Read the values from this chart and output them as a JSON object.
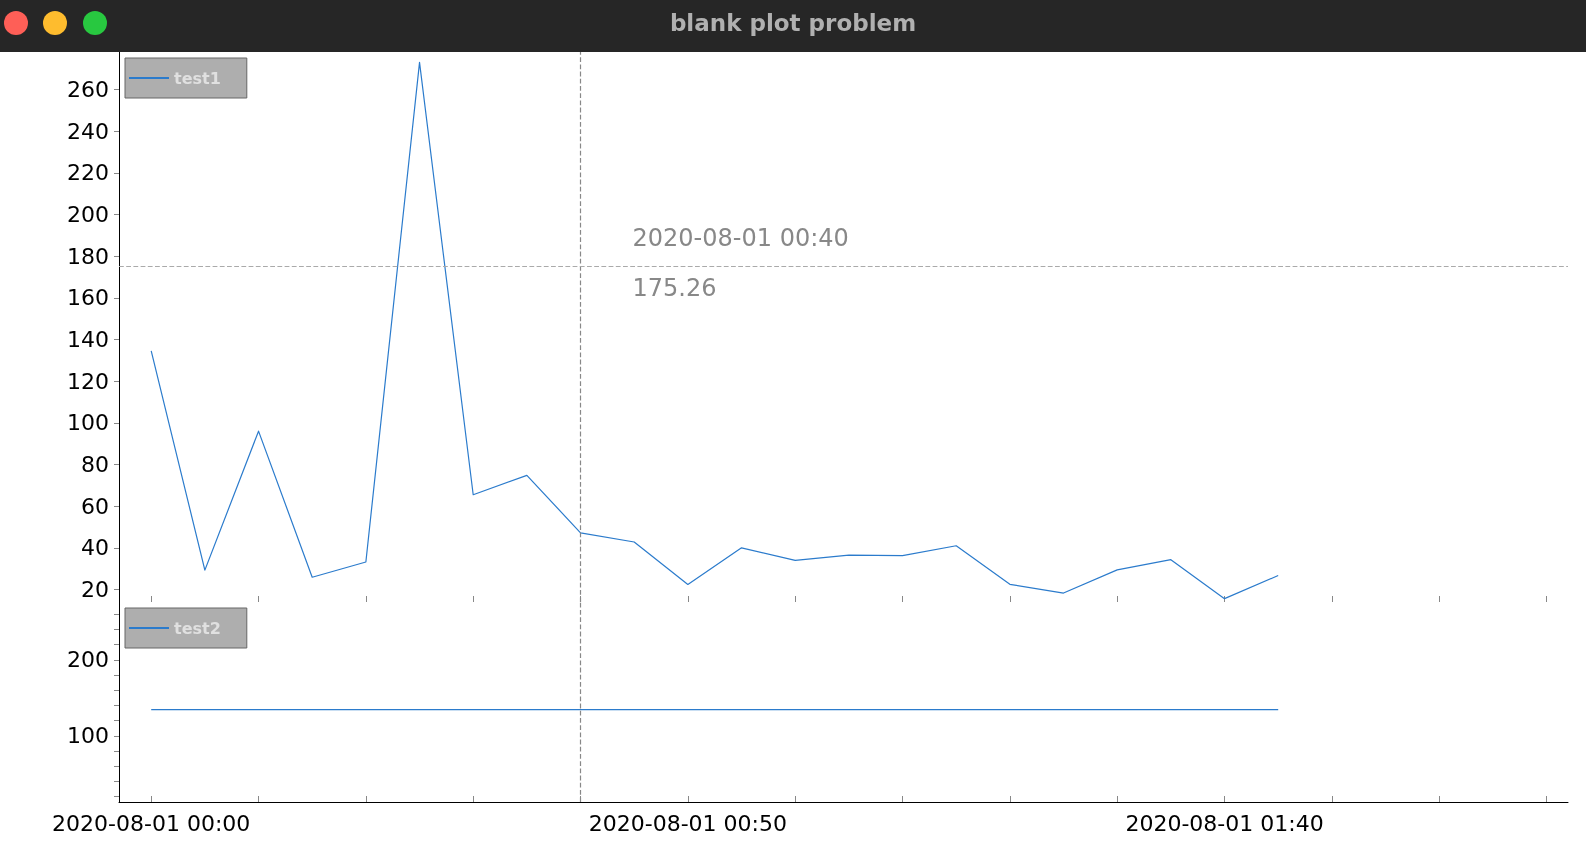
{
  "chart_data": [
    {
      "type": "line",
      "title": "blank plot problem",
      "x": [
        "2020-08-01T00:00",
        "2020-08-01T00:05",
        "2020-08-01T00:10",
        "2020-08-01T00:15",
        "2020-08-01T00:20",
        "2020-08-01T00:25",
        "2020-08-01T00:30",
        "2020-08-01T00:35",
        "2020-08-01T00:40",
        "2020-08-01T00:45",
        "2020-08-01T00:50",
        "2020-08-01T00:55",
        "2020-08-01T01:00",
        "2020-08-01T01:05",
        "2020-08-01T01:10",
        "2020-08-01T01:15",
        "2020-08-01T01:20",
        "2020-08-01T01:25",
        "2020-08-01T01:30",
        "2020-08-01T01:35",
        "2020-08-01T01:40",
        "2020-08-01T01:45"
      ],
      "series": [
        {
          "name": "test1",
          "color": "#2b7bcc",
          "values": [
            134.5,
            29.3,
            96,
            25.9,
            33.2,
            273,
            65.5,
            74.8,
            47.2,
            42.8,
            22.4,
            40,
            34,
            36.5,
            36.3,
            41,
            22.5,
            18.3,
            29.4,
            34.3,
            15.6,
            26.7
          ]
        }
      ],
      "xlim": [
        "2020-07-31T23:57",
        "2020-08-01T02:12"
      ],
      "xticks": [
        {
          "value": "2020-08-01T00:00",
          "label": null
        },
        {
          "value": "2020-08-01T00:10",
          "label": null
        },
        {
          "value": "2020-08-01T00:20",
          "label": null
        },
        {
          "value": "2020-08-01T00:30",
          "label": null
        },
        {
          "value": "2020-08-01T00:40",
          "label": null
        },
        {
          "value": "2020-08-01T00:50",
          "label": null
        },
        {
          "value": "2020-08-01T01:00",
          "label": null
        },
        {
          "value": "2020-08-01T01:10",
          "label": null
        },
        {
          "value": "2020-08-01T01:20",
          "label": null
        },
        {
          "value": "2020-08-01T01:30",
          "label": null
        },
        {
          "value": "2020-08-01T01:40",
          "label": null
        },
        {
          "value": "2020-08-01T01:50",
          "label": null
        },
        {
          "value": "2020-08-01T02:00",
          "label": null
        },
        {
          "value": "2020-08-01T02:10",
          "label": null
        }
      ],
      "ylim": [
        14,
        278
      ],
      "yticks": [
        20,
        40,
        60,
        80,
        100,
        120,
        140,
        160,
        180,
        200,
        220,
        240,
        260
      ],
      "tick_labels": "y",
      "ref_lines": [
        {
          "axis": "x",
          "value": "2020-08-01T00:40",
          "label": "2020-08-01 00:40",
          "color": "#888888",
          "line_style": "dashed"
        },
        {
          "axis": "y",
          "value": 175.26,
          "label": "175.26",
          "color": "#aaaaaa",
          "line_style": "dashed"
        }
      ],
      "legend": "top left",
      "grid": false,
      "marker": "none",
      "line_style": "solid"
    },
    {
      "type": "line",
      "x": [
        "2020-08-01T00:00",
        "2020-08-01T01:45"
      ],
      "series": [
        {
          "name": "test2",
          "color": "#2b7bcc",
          "values": [
            134.5,
            134.5
          ]
        }
      ],
      "xlim": [
        "2020-07-31T23:57",
        "2020-08-01T02:12"
      ],
      "xticks": [
        {
          "value": "2020-08-01T00:00",
          "label": "2020-08-01 00:00"
        },
        {
          "value": "2020-08-01T00:10",
          "label": null
        },
        {
          "value": "2020-08-01T00:20",
          "label": null
        },
        {
          "value": "2020-08-01T00:30",
          "label": null
        },
        {
          "value": "2020-08-01T00:40",
          "label": null
        },
        {
          "value": "2020-08-01T00:50",
          "label": "2020-08-01 00:50"
        },
        {
          "value": "2020-08-01T01:00",
          "label": null
        },
        {
          "value": "2020-08-01T01:10",
          "label": null
        },
        {
          "value": "2020-08-01T01:20",
          "label": null
        },
        {
          "value": "2020-08-01T01:30",
          "label": null
        },
        {
          "value": "2020-08-01T01:40",
          "label": "2020-08-01 01:40"
        },
        {
          "value": "2020-08-01T01:50",
          "label": null
        },
        {
          "value": "2020-08-01T02:00",
          "label": null
        },
        {
          "value": "2020-08-01T02:10",
          "label": null
        }
      ],
      "ylim": [
        13,
        276
      ],
      "yticks": [
        {
          "value": 20,
          "label": null
        },
        {
          "value": 40,
          "label": null
        },
        {
          "value": 60,
          "label": null
        },
        {
          "value": 80,
          "label": null
        },
        100,
        {
          "value": 120,
          "label": null
        },
        {
          "value": 140,
          "label": null
        },
        {
          "value": 160,
          "label": null
        },
        {
          "value": 180,
          "label": null
        },
        200,
        {
          "value": 220,
          "label": null
        },
        {
          "value": 240,
          "label": null
        },
        {
          "value": 260,
          "label": null
        }
      ],
      "ref_lines": [
        {
          "axis": "x",
          "value": "2020-08-01T00:40",
          "color": "#888888",
          "line_style": "dashed"
        }
      ],
      "legend": "top left",
      "grid": false,
      "marker": "none",
      "line_style": "solid"
    }
  ]
}
